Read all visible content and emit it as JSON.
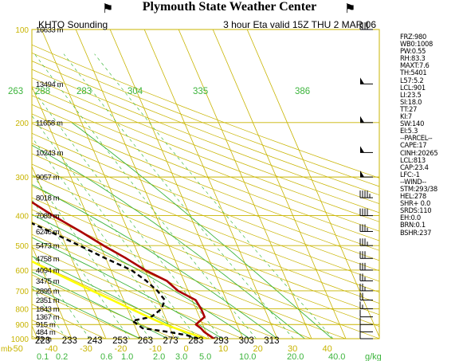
{
  "header": {
    "title": "Plymouth State Weather Center",
    "station": "KHTO Sounding",
    "valid": "3 hour Eta valid 15Z THU  2 MAR 06"
  },
  "colors": {
    "grid_yellow": "#c8b400",
    "adiabat_green": "#3cb43c",
    "mixing_ratio_green": "#44bb44",
    "temperature_red": "#aa0000",
    "dewpoint_black": "#000000",
    "parcel_yellow": "#ffff00",
    "wind_barb": "#000000"
  },
  "chart_data": {
    "type": "line",
    "chart_kind": "skew-T log-P sounding",
    "pressure_axis_label": "mb",
    "pressure_levels": [
      100,
      200,
      300,
      400,
      500,
      600,
      700,
      800,
      900,
      1000
    ],
    "height_labels": [
      {
        "p": 100,
        "label": "16633 m"
      },
      {
        "p": 150,
        "label": "13494 m"
      },
      {
        "p": 200,
        "label": "11658 m"
      },
      {
        "p": 250,
        "label": "10243 m"
      },
      {
        "p": 300,
        "label": "9057 m"
      },
      {
        "p": 350,
        "label": "8018 m"
      },
      {
        "p": 400,
        "label": "7089 m"
      },
      {
        "p": 450,
        "label": "6246 m"
      },
      {
        "p": 500,
        "label": "5473 m"
      },
      {
        "p": 550,
        "label": "4758 m"
      },
      {
        "p": 600,
        "label": "4094 m"
      },
      {
        "p": 650,
        "label": "3475 m"
      },
      {
        "p": 700,
        "label": "2895 m"
      },
      {
        "p": 750,
        "label": "2351 m"
      },
      {
        "p": 800,
        "label": "1843 m"
      },
      {
        "p": 850,
        "label": "1367 m"
      },
      {
        "p": 900,
        "label": "915 m"
      },
      {
        "p": 950,
        "label": "484 m"
      },
      {
        "p": 1000,
        "label": "73 m"
      }
    ],
    "temperature_axis": [
      "-50",
      "-40",
      "-30",
      "-20",
      "-10",
      "0",
      "10",
      "20",
      "30",
      "40"
    ],
    "bottom_kelvin_labels": [
      "223",
      "233",
      "243",
      "253",
      "263",
      "273",
      "283",
      "293",
      "303",
      "313"
    ],
    "top_theta_labels": [
      "263",
      "288",
      "283",
      "304",
      "335",
      "386"
    ],
    "mixing_ratio_axis": [
      "0.1",
      "0.2",
      "0.6",
      "1.0",
      "2.0",
      "3.0",
      "5.0",
      "10.0",
      "20.0",
      "40.0"
    ],
    "mixing_ratio_unit": "g/kg",
    "series": [
      {
        "name": "Temperature",
        "points": [
          [
            1000,
            1.5
          ],
          [
            975,
            0.5
          ],
          [
            950,
            -0.5
          ],
          [
            925,
            -1
          ],
          [
            900,
            -2
          ],
          [
            850,
            1.5
          ],
          [
            800,
            1.5
          ],
          [
            750,
            1
          ],
          [
            700,
            -3
          ],
          [
            650,
            -5
          ],
          [
            600,
            -10
          ],
          [
            550,
            -14
          ],
          [
            500,
            -19
          ],
          [
            450,
            -24
          ],
          [
            400,
            -30
          ],
          [
            350,
            -36
          ],
          [
            300,
            -44
          ],
          [
            262,
            -52
          ],
          [
            200,
            -54
          ],
          [
            150,
            -56
          ],
          [
            100,
            -60
          ]
        ]
      },
      {
        "name": "Dewpoint",
        "points": [
          [
            1000,
            -3
          ],
          [
            975,
            -6
          ],
          [
            950,
            -11
          ],
          [
            925,
            -18
          ],
          [
            900,
            -19
          ],
          [
            875,
            -20
          ],
          [
            850,
            -14
          ],
          [
            800,
            -10
          ],
          [
            750,
            -8
          ],
          [
            700,
            -9
          ],
          [
            650,
            -11
          ],
          [
            600,
            -14
          ],
          [
            550,
            -20
          ],
          [
            500,
            -26
          ],
          [
            450,
            -33
          ],
          [
            400,
            -41
          ],
          [
            350,
            -47
          ],
          [
            300,
            -52
          ]
        ]
      },
      {
        "name": "Parcel",
        "points": [
          [
            1000,
            -1
          ],
          [
            950,
            -6
          ],
          [
            900,
            -11
          ],
          [
            850,
            -15
          ],
          [
            800,
            -19
          ],
          [
            700,
            -28
          ],
          [
            600,
            -38
          ],
          [
            500,
            -49
          ],
          [
            400,
            -62
          ],
          [
            300,
            -78
          ],
          [
            200,
            -96
          ],
          [
            150,
            -104
          ],
          [
            110,
            -107
          ]
        ]
      }
    ],
    "wind_barbs": [
      {
        "p": 100,
        "speed": 40
      },
      {
        "p": 150,
        "speed": 50
      },
      {
        "p": 200,
        "speed": 50
      },
      {
        "p": 250,
        "speed": 50
      },
      {
        "p": 300,
        "speed": 50
      },
      {
        "p": 350,
        "speed": 45
      },
      {
        "p": 400,
        "speed": 40
      },
      {
        "p": 450,
        "speed": 35
      },
      {
        "p": 500,
        "speed": 35
      },
      {
        "p": 550,
        "speed": 30
      },
      {
        "p": 600,
        "speed": 30
      },
      {
        "p": 650,
        "speed": 25
      },
      {
        "p": 700,
        "speed": 25
      },
      {
        "p": 750,
        "speed": 20
      },
      {
        "p": 800,
        "speed": 15
      },
      {
        "p": 850,
        "speed": 10
      },
      {
        "p": 900,
        "speed": 10
      },
      {
        "p": 950,
        "speed": 10
      },
      {
        "p": 1000,
        "speed": 10
      }
    ]
  },
  "indices": [
    "FRZ:980",
    "WB0:1008",
    "PW:0.55",
    "RH:83.3",
    "MAXT:7.6",
    "TH:5401",
    "L57:5.2",
    "LCL:901",
    "LI:23.5",
    "SI:18.0",
    "TT:27",
    "KI:7",
    "SW:140",
    "EI:5.3",
    "--PARCEL--",
    "CAPE:17",
    "CINH:20265",
    "LCL:813",
    "CAP:23.4",
    "LFC:-1",
    "--WIND--",
    "STM:293/38",
    "HEL:278",
    "SHR+ 0.0",
    "SRDS:110",
    "EH:0.0",
    "BRN:0.1",
    "BSHR:237"
  ]
}
